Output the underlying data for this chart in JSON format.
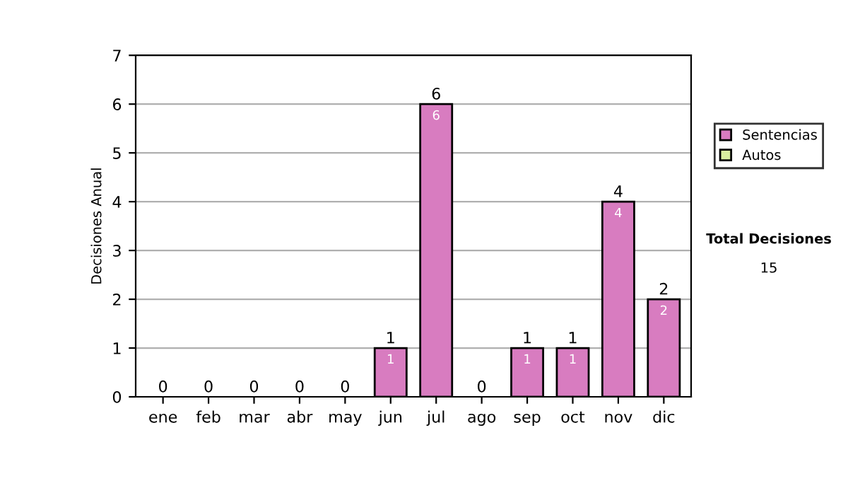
{
  "chart_data": {
    "type": "bar",
    "stacked": true,
    "ylabel": "Decisiones Anual",
    "categories": [
      "ene",
      "feb",
      "mar",
      "abr",
      "may",
      "jun",
      "jul",
      "ago",
      "sep",
      "oct",
      "nov",
      "dic"
    ],
    "series": [
      {
        "name": "Sentencias",
        "color": "#d87cc0",
        "values": [
          0,
          0,
          0,
          0,
          0,
          1,
          6,
          0,
          1,
          1,
          4,
          2
        ],
        "value_labels": [
          null,
          null,
          null,
          null,
          null,
          "1",
          "6",
          null,
          "1",
          "1",
          "4",
          "2"
        ]
      },
      {
        "name": "Autos",
        "color": "#d8eea0",
        "values": [
          0,
          0,
          0,
          0,
          0,
          0,
          0,
          0,
          0,
          0,
          0,
          0
        ]
      }
    ],
    "totals": [
      "0",
      "0",
      "0",
      "0",
      "0",
      "1",
      "6",
      "0",
      "1",
      "1",
      "4",
      "2"
    ],
    "ylim": [
      0,
      7
    ],
    "yticks": [
      0,
      1,
      2,
      3,
      4,
      5,
      6,
      7
    ],
    "grid": "y",
    "legend": "right",
    "annotations": [
      "Total Decisiones",
      "15"
    ]
  }
}
